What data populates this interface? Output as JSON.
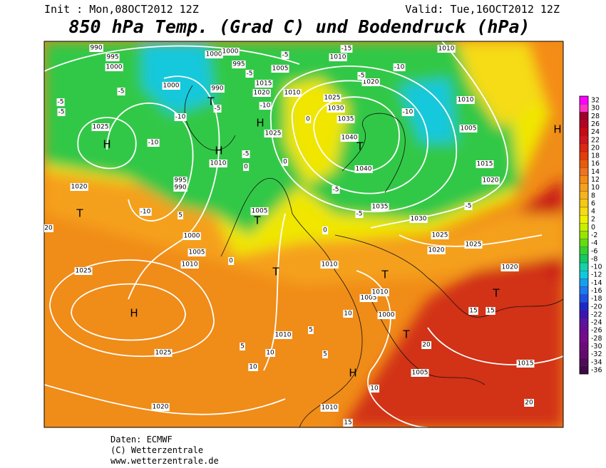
{
  "header": {
    "init": "Init : Mon,08OCT2012 12Z",
    "valid": "Valid: Tue,16OCT2012 12Z",
    "title": "850 hPa Temp. (Grad C) und Bodendruck (hPa)"
  },
  "legend": {
    "values": [
      32,
      30,
      28,
      26,
      24,
      22,
      20,
      18,
      16,
      14,
      12,
      10,
      8,
      6,
      4,
      2,
      0,
      -2,
      -4,
      -6,
      -8,
      -10,
      -12,
      -14,
      -16,
      -18,
      -20,
      -22,
      -24,
      -26,
      -28,
      -30,
      -32,
      -34,
      -36
    ],
    "colors": [
      "#ff00ff",
      "#ff33cc",
      "#a0002a",
      "#b80020",
      "#c80a14",
      "#d2141e",
      "#dc2814",
      "#e63c0a",
      "#eb5a0a",
      "#f0731e",
      "#f58c14",
      "#f5a01e",
      "#f5b41e",
      "#f5c814",
      "#f5dc14",
      "#f0f000",
      "#c8f000",
      "#96e600",
      "#64dc14",
      "#32d232",
      "#14c864",
      "#14d2aa",
      "#14c8dc",
      "#14a0f0",
      "#1e78f0",
      "#1e50e6",
      "#1e28c8",
      "#3c14b4",
      "#5a14a0",
      "#6e0a96",
      "#780a8c",
      "#6e0a7d",
      "#640a6e",
      "#500a5a",
      "#3c0a46"
    ]
  },
  "map": {
    "labels": [
      "990",
      "995",
      "1000",
      "1000",
      "1000",
      "-5",
      "1010",
      "-15",
      "1010",
      "1000",
      "-5",
      "990",
      "995",
      "-5",
      "1005",
      "1015",
      "1020",
      "1010",
      "1025",
      "1030",
      "1035",
      "1020",
      "-5",
      "-10",
      "-5",
      "-5",
      "1025",
      "H",
      "-10",
      "-10",
      "T",
      "-5",
      "H",
      "-10",
      "1025",
      "H",
      "1010",
      "-5",
      "0",
      "1040",
      "T",
      "1040",
      "1010",
      "-10",
      "1005",
      "1015",
      "1020",
      "H",
      "995",
      "990",
      "-10",
      "1020",
      "T",
      "20",
      "5",
      "1000",
      "1005",
      "1010",
      "1025",
      "H",
      "1005",
      "T",
      "T",
      "-5",
      "1035",
      "1030",
      "-5",
      "1025",
      "1020",
      "1025",
      "1010",
      "T",
      "1020",
      "T",
      "15",
      "15",
      "1005",
      "1010",
      "10",
      "1000",
      "5",
      "1010",
      "1025",
      "5",
      "10",
      "5",
      "T",
      "20",
      "10",
      "H",
      "10",
      "1005",
      "1015",
      "20",
      "1020",
      "1010",
      "15",
      "0",
      "-5",
      "0",
      "0",
      "0"
    ]
  },
  "footer": {
    "lines": [
      "Daten: ECMWF",
      "(C) Wetterzentrale",
      "www.wetterzentrale.de"
    ]
  }
}
